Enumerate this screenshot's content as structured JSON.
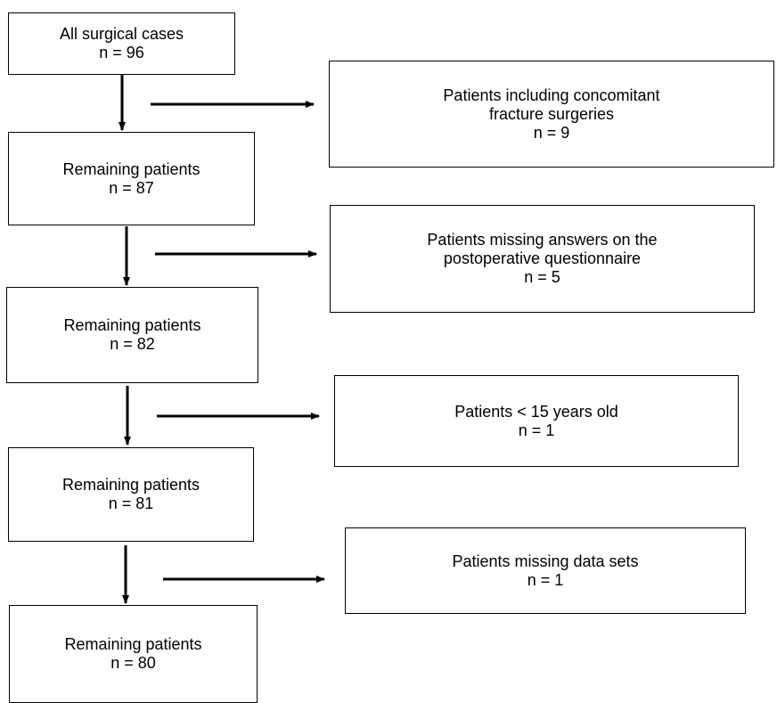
{
  "flowchart": {
    "main_boxes": [
      {
        "label": "All surgical cases",
        "count": "n = 96"
      },
      {
        "label": "Remaining patients",
        "count": "n = 87"
      },
      {
        "label": "Remaining patients",
        "count": "n = 82"
      },
      {
        "label": "Remaining patients",
        "count": "n = 81"
      },
      {
        "label": "Remaining patients",
        "count": "n = 80"
      }
    ],
    "exclusion_boxes": [
      {
        "line1": "Patients including concomitant",
        "line2": "fracture surgeries",
        "count": "n = 9"
      },
      {
        "line1": "Patients missing answers on the",
        "line2": "postoperative questionnaire",
        "count": "n = 5"
      },
      {
        "line1": "Patients < 15 years old",
        "count": "n = 1"
      },
      {
        "line1": "Patients missing data sets",
        "count": "n = 1"
      }
    ]
  }
}
